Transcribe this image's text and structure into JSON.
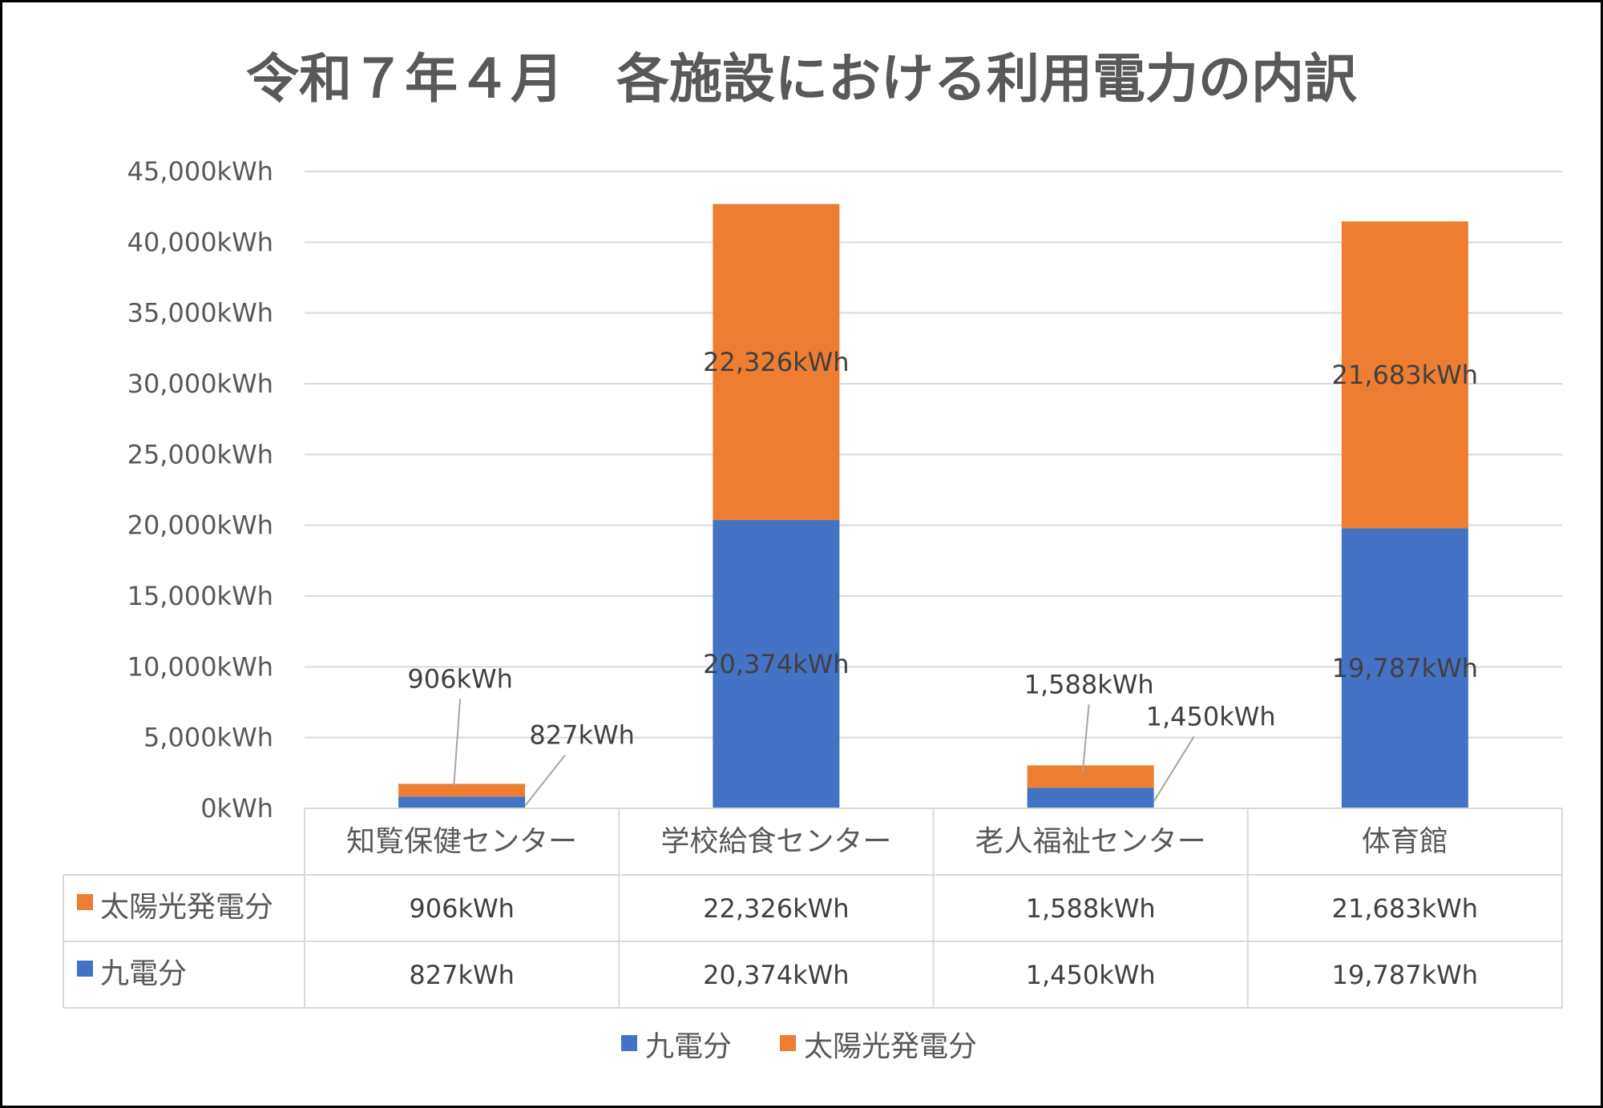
{
  "chart_data": {
    "type": "bar",
    "stacked": true,
    "title": "令和７年４月　各施設における利用電力の内訳",
    "categories": [
      "知覧保健センター",
      "学校給食センター",
      "老人福祉センター",
      "体育館"
    ],
    "series": [
      {
        "name": "九電分",
        "color": "#4472C4",
        "values": [
          827,
          20374,
          1450,
          19787
        ],
        "labels": [
          "827kWh",
          "20,374kWh",
          "1,450kWh",
          "19,787kWh"
        ]
      },
      {
        "name": "太陽光発電分",
        "color": "#ED7D31",
        "values": [
          906,
          22326,
          1588,
          21683
        ],
        "labels": [
          "906kWh",
          "22,326kWh",
          "1,588kWh",
          "21,683kWh"
        ]
      }
    ],
    "ylim": [
      0,
      45000
    ],
    "yticks": [
      "0kWh",
      "5,000kWh",
      "10,000kWh",
      "15,000kWh",
      "20,000kWh",
      "25,000kWh",
      "30,000kWh",
      "35,000kWh",
      "40,000kWh",
      "45,000kWh"
    ],
    "grid": true,
    "data_table": {
      "rows": [
        "太陽光発電分",
        "九電分"
      ]
    },
    "legend": {
      "placement": "bottom",
      "entries": [
        "九電分",
        "太陽光発電分"
      ]
    }
  }
}
